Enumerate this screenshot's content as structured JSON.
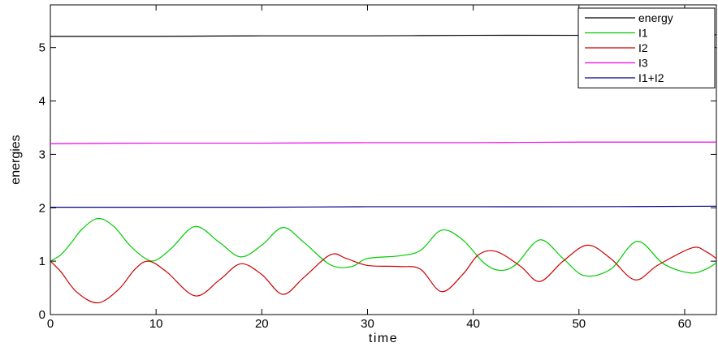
{
  "chart_data": {
    "type": "line",
    "xlabel": "time",
    "ylabel": "energies",
    "xlim": [
      0,
      63
    ],
    "ylim": [
      0,
      5.8
    ],
    "xticks": [
      0,
      10,
      20,
      30,
      40,
      50,
      60
    ],
    "yticks": [
      0,
      1,
      2,
      3,
      4,
      5
    ],
    "legend_position": "top-right",
    "series": [
      {
        "name": "energy",
        "color": "#000000",
        "x": [
          0,
          10,
          20,
          30,
          40,
          50,
          63
        ],
        "y": [
          5.21,
          5.21,
          5.22,
          5.22,
          5.23,
          5.23,
          5.24
        ]
      },
      {
        "name": "I1",
        "color": "#00cc00",
        "x": [
          0,
          1,
          2,
          3,
          4.5,
          6,
          7.5,
          9,
          10,
          11.5,
          13.7,
          16,
          18,
          20,
          22,
          24,
          26.5,
          28.5,
          30,
          33,
          35,
          37,
          39,
          41,
          42.5,
          44,
          46.3,
          48.5,
          50.5,
          53,
          55.5,
          58,
          60.5,
          62,
          63
        ],
        "y": [
          1.0,
          1.12,
          1.35,
          1.6,
          1.8,
          1.65,
          1.3,
          1.05,
          1.02,
          1.25,
          1.65,
          1.35,
          1.08,
          1.3,
          1.63,
          1.35,
          0.93,
          0.9,
          1.05,
          1.1,
          1.2,
          1.58,
          1.4,
          0.97,
          0.83,
          0.93,
          1.4,
          1.05,
          0.73,
          0.85,
          1.37,
          0.95,
          0.78,
          0.85,
          0.97
        ]
      },
      {
        "name": "I2",
        "color": "#cc0000",
        "x": [
          0,
          1,
          2.5,
          4.5,
          6.5,
          8,
          9.3,
          11,
          13.7,
          16,
          18,
          20,
          22,
          24,
          26.5,
          28,
          30,
          33,
          35,
          37,
          39,
          40.5,
          42.2,
          44.5,
          46.3,
          48.5,
          50.8,
          53,
          55.3,
          57.5,
          60.7,
          62,
          63
        ],
        "y": [
          1.0,
          0.8,
          0.42,
          0.22,
          0.48,
          0.85,
          1.0,
          0.8,
          0.35,
          0.65,
          0.95,
          0.75,
          0.38,
          0.7,
          1.12,
          1.05,
          0.92,
          0.9,
          0.85,
          0.43,
          0.75,
          1.12,
          1.18,
          0.9,
          0.62,
          1.0,
          1.3,
          1.05,
          0.65,
          0.93,
          1.25,
          1.18,
          1.05
        ]
      },
      {
        "name": "I3",
        "color": "#ee00ee",
        "x": [
          0,
          10,
          20,
          30,
          40,
          50,
          63
        ],
        "y": [
          3.2,
          3.21,
          3.21,
          3.22,
          3.22,
          3.23,
          3.23
        ]
      },
      {
        "name": "I1+I2",
        "color": "#00008b",
        "x": [
          0,
          10,
          20,
          30,
          40,
          50,
          63
        ],
        "y": [
          2.01,
          2.01,
          2.01,
          2.02,
          2.02,
          2.02,
          2.03
        ]
      }
    ]
  }
}
